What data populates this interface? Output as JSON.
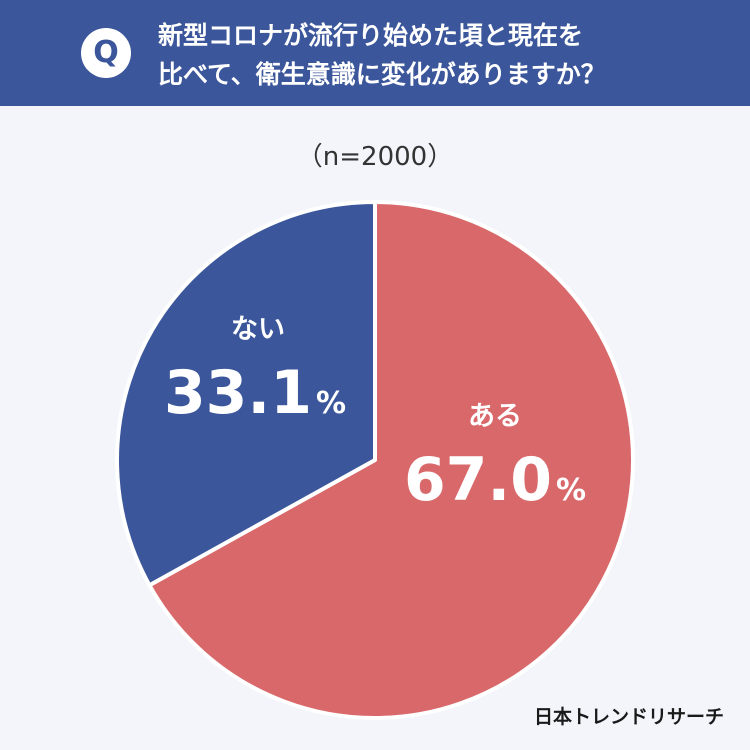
{
  "header": {
    "badge": "Q",
    "question_lines": [
      "新型コロナが流行り始めた頃と現在を",
      "比べて、衛生意識に変化がありますか？"
    ]
  },
  "sample_size": "（n=2000）",
  "brand": "日本トレンドリサーチ",
  "colors": {
    "header_bg": "#3b569a",
    "background": "#f3f5fb",
    "slice_aru": "#d9686a",
    "slice_nai": "#3b569a"
  },
  "chart_data": {
    "type": "pie",
    "unit": "%",
    "slices": [
      {
        "label": "ある",
        "value": 67.0,
        "display": "67.0",
        "color": "#d9686a"
      },
      {
        "label": "ない",
        "value": 33.1,
        "display": "33.1",
        "color": "#3b569a"
      }
    ]
  }
}
